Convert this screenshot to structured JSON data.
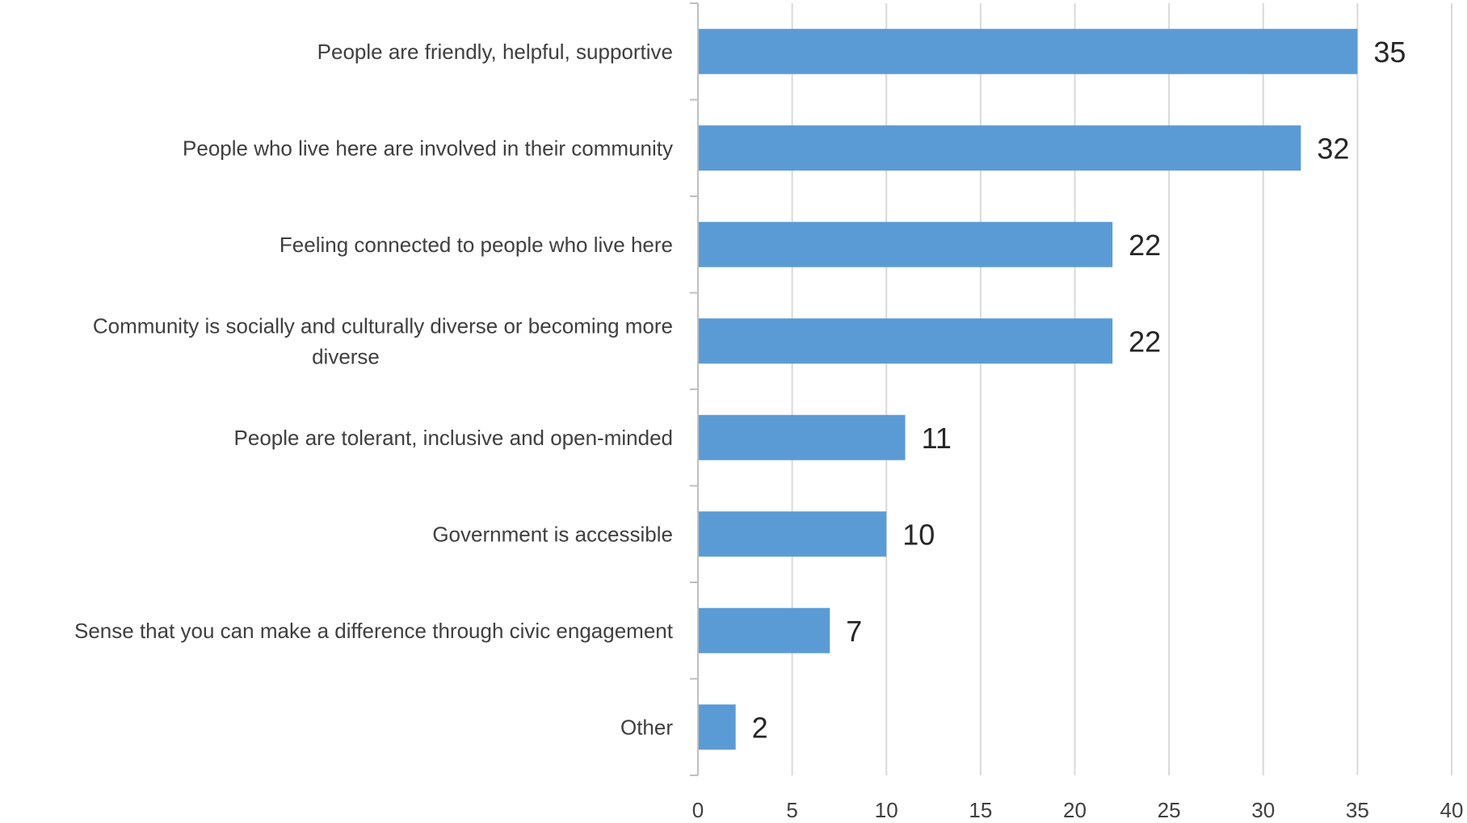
{
  "chart_data": {
    "type": "bar",
    "orientation": "horizontal",
    "title": "",
    "xlabel": "",
    "ylabel": "",
    "categories": [
      [
        "People are friendly, helpful, supportive"
      ],
      [
        "People who live here are involved in their community"
      ],
      [
        "Feeling connected to people who live here"
      ],
      [
        "Community is socially and culturally diverse or becoming more",
        "diverse"
      ],
      [
        "People are tolerant, inclusive and open-minded"
      ],
      [
        "Government is accessible"
      ],
      [
        "Sense that you can make a difference through civic engagement"
      ],
      [
        "Other"
      ]
    ],
    "values": [
      35,
      32,
      22,
      22,
      11,
      10,
      7,
      2
    ],
    "xlim": [
      0,
      40
    ],
    "xticks": [
      0,
      5,
      10,
      15,
      20,
      25,
      30,
      35,
      40
    ],
    "grid": "vertical",
    "legend": "none",
    "data_labels": true,
    "colors": {
      "bar": "#5b9bd5",
      "grid": "#d9d9d9",
      "axis": "#bfbfbf"
    }
  }
}
